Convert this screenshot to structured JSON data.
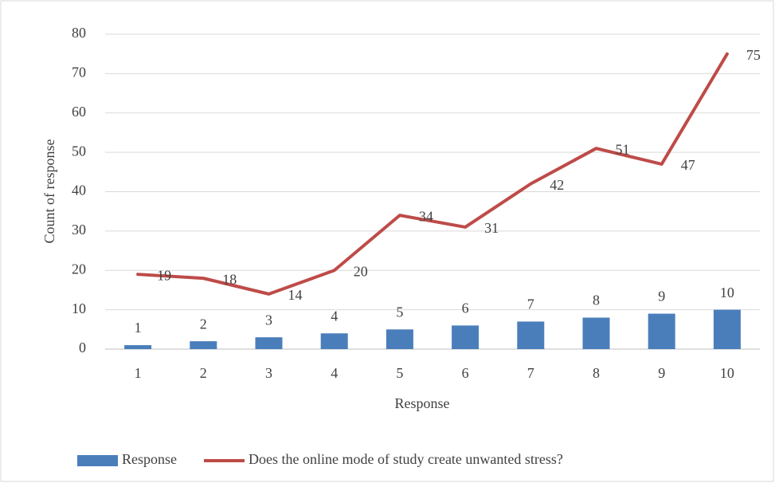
{
  "chart_data": {
    "type": "bar_line",
    "categories": [
      1,
      2,
      3,
      4,
      5,
      6,
      7,
      8,
      9,
      10
    ],
    "series": [
      {
        "name": "Response",
        "type": "bar",
        "color": "#4a7ebb",
        "values": [
          1,
          2,
          3,
          4,
          5,
          6,
          7,
          8,
          9,
          10
        ]
      },
      {
        "name": "Does the online mode of study create unwanted stress?",
        "type": "line",
        "color": "#be4b48",
        "values": [
          19,
          18,
          14,
          20,
          34,
          31,
          42,
          51,
          47,
          75
        ]
      }
    ],
    "xlabel": "Response",
    "ylabel": "Count of response",
    "ylim": [
      0,
      80
    ],
    "yticks": [
      0,
      10,
      20,
      30,
      40,
      50,
      60,
      70,
      80
    ],
    "grid": true,
    "legend": "bottom",
    "data_labels": true
  }
}
